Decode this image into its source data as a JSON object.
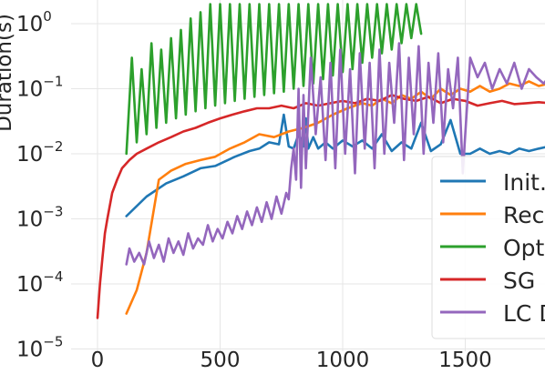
{
  "chart_data": {
    "type": "line",
    "title": "",
    "xlabel": "",
    "ylabel": "Duration(s)",
    "yscale": "log",
    "xlim": [
      -100,
      1840
    ],
    "ylim": [
      1e-05,
      1.8
    ],
    "grid": true,
    "legend_placement": "right",
    "x_ticks": [
      {
        "value": 0,
        "label": "0"
      },
      {
        "value": 500,
        "label": "500"
      },
      {
        "value": 1000,
        "label": "1000"
      },
      {
        "value": 1500,
        "label": "1500"
      }
    ],
    "y_ticks": [
      {
        "value": 1e-05,
        "base": "10",
        "exp": "−5"
      },
      {
        "value": 0.0001,
        "base": "10",
        "exp": "−4"
      },
      {
        "value": 0.001,
        "base": "10",
        "exp": "−3"
      },
      {
        "value": 0.01,
        "base": "10",
        "exp": "−2"
      },
      {
        "value": 0.1,
        "base": "10",
        "exp": "−1"
      },
      {
        "value": 1,
        "base": "10",
        "exp": "0"
      }
    ],
    "series": [
      {
        "name": "Init.",
        "color": "#1f77b4",
        "x": [
          118,
          200,
          280,
          350,
          420,
          480,
          560,
          620,
          660,
          700,
          740,
          760,
          780,
          800,
          820,
          840,
          850,
          860,
          880,
          900,
          930,
          960,
          1000,
          1040,
          1080,
          1120,
          1160,
          1200,
          1240,
          1280,
          1320,
          1360,
          1400,
          1440,
          1480,
          1520,
          1560,
          1600,
          1640,
          1680,
          1720,
          1760,
          1800,
          1840
        ],
        "y": [
          0.0011,
          0.0022,
          0.0035,
          0.0045,
          0.006,
          0.0065,
          0.009,
          0.011,
          0.012,
          0.015,
          0.014,
          0.04,
          0.013,
          0.012,
          0.02,
          0.013,
          0.035,
          0.012,
          0.018,
          0.012,
          0.015,
          0.012,
          0.016,
          0.013,
          0.016,
          0.012,
          0.02,
          0.011,
          0.015,
          0.012,
          0.03,
          0.011,
          0.014,
          0.033,
          0.01,
          0.01,
          0.012,
          0.01,
          0.011,
          0.01,
          0.012,
          0.011,
          0.012,
          0.013
        ]
      },
      {
        "name": "Rec",
        "color": "#ff7f0e",
        "x": [
          118,
          160,
          200,
          250,
          300,
          360,
          420,
          480,
          540,
          600,
          660,
          720,
          780,
          840,
          900,
          960,
          1020,
          1080,
          1120,
          1160,
          1200,
          1240,
          1280,
          1320,
          1360,
          1400,
          1440,
          1480,
          1520,
          1560,
          1600,
          1640,
          1680,
          1720,
          1760,
          1800,
          1840
        ],
        "y": [
          3.5e-05,
          8e-05,
          0.0003,
          0.004,
          0.0055,
          0.007,
          0.008,
          0.009,
          0.012,
          0.015,
          0.02,
          0.018,
          0.022,
          0.025,
          0.03,
          0.04,
          0.05,
          0.06,
          0.055,
          0.07,
          0.06,
          0.08,
          0.07,
          0.09,
          0.07,
          0.1,
          0.08,
          0.1,
          0.09,
          0.11,
          0.09,
          0.1,
          0.12,
          0.11,
          0.13,
          0.11,
          0.12
        ]
      },
      {
        "name": "Opt",
        "color": "#2ca02c",
        "x": [
          118,
          140,
          160,
          180,
          200,
          220,
          240,
          260,
          280,
          300,
          320,
          340,
          360,
          380,
          400,
          420,
          440,
          460,
          480,
          500,
          520,
          540,
          560,
          580,
          600,
          620,
          640,
          660,
          680,
          700,
          720,
          740,
          760,
          780,
          800,
          820,
          840,
          860,
          880,
          900,
          920,
          940,
          960,
          980,
          1000,
          1020,
          1040,
          1060,
          1080,
          1100,
          1120,
          1140,
          1160,
          1180,
          1200,
          1220,
          1240,
          1260,
          1280,
          1300,
          1320
        ],
        "y": [
          0.01,
          0.3,
          0.015,
          0.2,
          0.02,
          0.5,
          0.025,
          0.4,
          0.03,
          0.6,
          0.035,
          0.8,
          0.04,
          1.2,
          0.045,
          1.5,
          0.05,
          2,
          0.055,
          2,
          0.06,
          2,
          0.065,
          2,
          0.07,
          2,
          0.075,
          2,
          0.08,
          2,
          0.085,
          2,
          0.09,
          2,
          0.1,
          2,
          0.11,
          2,
          0.12,
          2,
          0.14,
          2,
          0.16,
          2,
          0.18,
          2,
          0.2,
          2,
          0.25,
          2,
          0.3,
          2,
          0.35,
          2,
          0.4,
          2,
          0.5,
          2,
          0.6,
          2,
          0.7
        ]
      },
      {
        "name": "SG",
        "color": "#d62728",
        "x": [
          0,
          10,
          20,
          30,
          40,
          60,
          80,
          100,
          130,
          160,
          200,
          250,
          300,
          350,
          400,
          450,
          500,
          550,
          600,
          650,
          700,
          750,
          800,
          850,
          900,
          950,
          1000,
          1050,
          1100,
          1150,
          1200,
          1250,
          1300,
          1350,
          1400,
          1450,
          1500,
          1550,
          1600,
          1650,
          1700,
          1750,
          1800,
          1840
        ],
        "y": [
          3e-05,
          0.0001,
          0.00025,
          0.0006,
          0.001,
          0.0025,
          0.004,
          0.006,
          0.008,
          0.01,
          0.012,
          0.015,
          0.018,
          0.022,
          0.025,
          0.03,
          0.035,
          0.04,
          0.045,
          0.05,
          0.05,
          0.055,
          0.05,
          0.06,
          0.055,
          0.06,
          0.065,
          0.06,
          0.07,
          0.065,
          0.08,
          0.07,
          0.065,
          0.075,
          0.06,
          0.07,
          0.065,
          0.055,
          0.06,
          0.065,
          0.058,
          0.06,
          0.062,
          0.06
        ]
      },
      {
        "name": "LC D",
        "color": "#9467bd",
        "x": [
          118,
          130,
          150,
          170,
          190,
          210,
          230,
          250,
          270,
          290,
          310,
          330,
          350,
          370,
          390,
          410,
          430,
          450,
          470,
          490,
          510,
          530,
          550,
          570,
          590,
          610,
          630,
          650,
          670,
          690,
          710,
          730,
          750,
          770,
          780,
          790,
          800,
          810,
          820,
          830,
          840,
          850,
          870,
          890,
          910,
          930,
          950,
          970,
          990,
          1010,
          1030,
          1050,
          1070,
          1090,
          1110,
          1130,
          1150,
          1170,
          1190,
          1210,
          1230,
          1250,
          1270,
          1290,
          1310,
          1330,
          1350,
          1370,
          1390,
          1410,
          1430,
          1450,
          1470,
          1490,
          1500,
          1520,
          1550,
          1580,
          1610,
          1640,
          1670,
          1700,
          1730,
          1760,
          1790,
          1820,
          1840
        ],
        "y": [
          0.0002,
          0.00035,
          0.00022,
          0.0003,
          0.0002,
          0.00045,
          0.00025,
          0.0004,
          0.00022,
          0.0005,
          0.0003,
          0.00045,
          0.00028,
          0.0006,
          0.00035,
          0.0005,
          0.0004,
          0.0008,
          0.00045,
          0.0007,
          0.0005,
          0.0009,
          0.0006,
          0.0011,
          0.0007,
          0.0013,
          0.0008,
          0.0015,
          0.0009,
          0.0018,
          0.001,
          0.0022,
          0.0012,
          0.0025,
          0.002,
          0.006,
          0.012,
          0.004,
          0.1,
          0.003,
          0.08,
          0.006,
          0.3,
          0.02,
          0.15,
          0.008,
          0.25,
          0.006,
          0.4,
          0.01,
          0.2,
          0.005,
          0.35,
          0.012,
          0.25,
          0.006,
          0.4,
          0.01,
          0.25,
          0.03,
          0.5,
          0.008,
          0.3,
          0.02,
          0.45,
          0.01,
          0.25,
          0.03,
          0.35,
          0.015,
          0.2,
          0.05,
          0.3,
          0.005,
          0.02,
          0.3,
          0.15,
          0.25,
          0.1,
          0.2,
          0.12,
          0.25,
          0.1,
          0.2,
          0.15,
          0.12,
          0.15
        ]
      }
    ]
  }
}
